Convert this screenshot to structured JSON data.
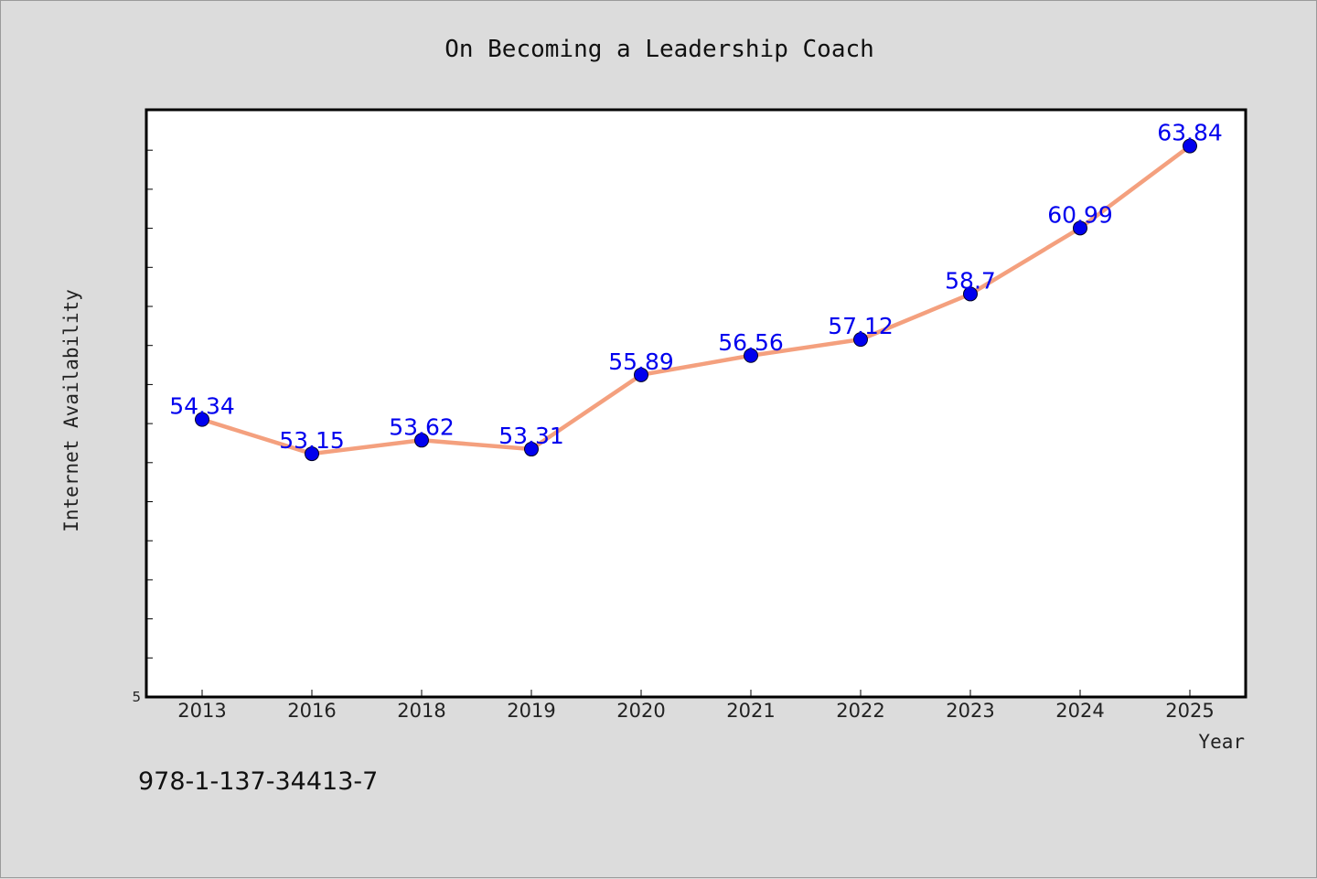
{
  "chart_data": {
    "type": "line",
    "title": "On Becoming a Leadership Coach",
    "xlabel": "Year",
    "ylabel": "Internet Availability",
    "categories": [
      "2013",
      "2016",
      "2018",
      "2019",
      "2020",
      "2021",
      "2022",
      "2023",
      "2024",
      "2025"
    ],
    "series": [
      {
        "values": [
          54.34,
          53.15,
          53.62,
          53.31,
          55.89,
          56.56,
          57.12,
          58.7,
          60.99,
          63.84
        ],
        "labels": [
          "54.34",
          "53.15",
          "53.62",
          "53.31",
          "55.89",
          "56.56",
          "57.12",
          "58.7",
          "60.99",
          "63.84"
        ]
      }
    ],
    "ylim": [
      44.7,
      65.1
    ],
    "y_tick_label": "5",
    "grid": false,
    "colors": {
      "line": "#f4a07e",
      "marker": "#0000ee",
      "label": "#0000ee",
      "background": "#dcdcdc",
      "plot_background": "#ffffff"
    }
  },
  "footnote": "978-1-137-34413-7"
}
